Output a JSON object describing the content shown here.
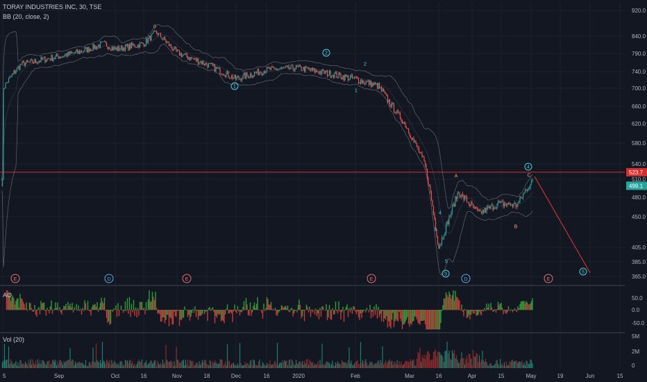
{
  "header": {
    "symbol_line": "TORAY INDUSTRIES INC, 30, TSE",
    "indicator_line": "BB (20, close, 2)"
  },
  "ao_panel": {
    "label": "AO"
  },
  "vol_panel": {
    "label": "Vol (20)"
  },
  "colors": {
    "background": "#131722",
    "grid": "#1e2230",
    "candle_up": "#26a69a",
    "candle_down": "#ef5350",
    "bb_band": "#9598a1",
    "wave_cyan": "#4dd0e1",
    "wave_orange": "#f4a27a",
    "line_red": "#e53935",
    "ao_green": "#2e9e3b",
    "ao_red": "#c83a3a",
    "vol_up": "#1c7f70",
    "vol_down": "#8a2c2c",
    "event_red": "#e57373",
    "event_blue": "#5aa9e6",
    "price_badge_red": "#d32f2f",
    "price_badge_green": "#26a69a"
  },
  "chart_data": [
    {
      "type": "line",
      "panel": "price",
      "title": "TORAY INDUSTRIES INC, 30, TSE",
      "x_ticks": [
        "5",
        "Sep",
        "Oct",
        "16",
        "Nov",
        "18",
        "Dec",
        "16",
        "2020",
        "Feb",
        "Mar",
        "16",
        "Apr",
        "15",
        "May",
        "19",
        "Jun",
        "15"
      ],
      "y_ticks": [
        "920.0",
        "840.0",
        "790.0",
        "740.0",
        "700.0",
        "660.0",
        "620.0",
        "580.0",
        "540.0",
        "510.0",
        "480.0",
        "450.0",
        "405.0",
        "385.0",
        "365.0"
      ],
      "horizontal_line": {
        "value": 523.7,
        "label": "523.7"
      },
      "last_price": {
        "value": 499.1,
        "label": "499.1"
      },
      "price_path": [
        [
          "5",
          700
        ],
        [
          "mid-Aug",
          760
        ],
        [
          "Sep",
          782
        ],
        [
          "mid-Sep",
          795
        ],
        [
          "late-Sep",
          818
        ],
        [
          "Oct",
          802
        ],
        [
          "16",
          818
        ],
        [
          "late-Oct",
          852
        ],
        [
          "Nov",
          792
        ],
        [
          "18",
          760
        ],
        [
          "Dec",
          722
        ],
        [
          "16",
          745
        ],
        [
          "2020",
          750
        ],
        [
          "Feb",
          722
        ],
        [
          "mid-Feb",
          705
        ],
        [
          "Mar",
          615
        ],
        [
          "early-Mar",
          540
        ],
        [
          "16",
          405
        ],
        [
          "late-Mar",
          442
        ],
        [
          "Apr",
          488
        ],
        [
          "early-Apr",
          455
        ],
        [
          "15",
          470
        ],
        [
          "late-Apr",
          468
        ],
        [
          "May",
          505
        ]
      ],
      "wave_labels": [
        {
          "text": "0",
          "near": "late-Oct",
          "price": 862,
          "style": "orange"
        },
        {
          "text": "1",
          "near": "Dec",
          "price": 700,
          "style": "cyan-circle"
        },
        {
          "text": "2",
          "near": "2020",
          "price": 760,
          "style": "cyan-circle"
        },
        {
          "text": "2",
          "near": "Feb",
          "price": 752,
          "style": "cyan"
        },
        {
          "text": "1",
          "near": "Feb",
          "price": 702,
          "style": "cyan"
        },
        {
          "text": "3",
          "near": "16",
          "price": 455,
          "style": "cyan"
        },
        {
          "text": "4",
          "near": "16",
          "price": 495,
          "style": "cyan"
        },
        {
          "text": "5",
          "near": "16",
          "price": 385,
          "style": "cyan"
        },
        {
          "text": "3",
          "near": "16",
          "price": 365,
          "style": "cyan-circle"
        },
        {
          "text": "A",
          "near": "late-Mar",
          "price": 512,
          "style": "orange"
        },
        {
          "text": "B",
          "near": "15",
          "price": 455,
          "style": "orange"
        },
        {
          "text": "C",
          "near": "May",
          "price": 520,
          "style": "orange"
        },
        {
          "text": "4",
          "near": "May",
          "price": 535,
          "style": "cyan-circle"
        },
        {
          "text": "5",
          "near": "Jun",
          "price": 365,
          "style": "cyan-circle"
        }
      ],
      "projection": {
        "from": 523.7,
        "to": 370,
        "color": "red"
      },
      "event_markers": [
        {
          "text": "E",
          "near": "5",
          "color": "red"
        },
        {
          "text": "D",
          "near": "Oct",
          "color": "blue"
        },
        {
          "text": "E",
          "near": "Nov",
          "color": "red"
        },
        {
          "text": "E",
          "near": "Feb",
          "color": "red"
        },
        {
          "text": "D",
          "near": "Apr",
          "color": "blue"
        },
        {
          "text": "E",
          "near": "May",
          "color": "red"
        }
      ]
    },
    {
      "type": "bar",
      "panel": "ao",
      "title": "AO",
      "y_ticks": [
        "50.0",
        "0.0",
        "-50.0"
      ]
    },
    {
      "type": "bar",
      "panel": "volume",
      "title": "Vol (20)",
      "y_ticks": [
        "5M",
        "2M",
        "0"
      ]
    }
  ]
}
